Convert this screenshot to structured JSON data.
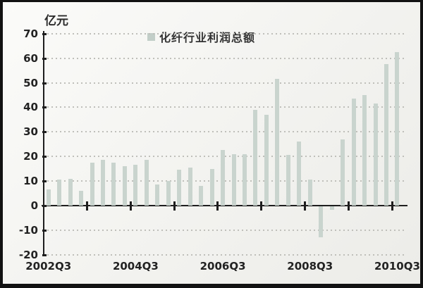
{
  "unit_label": "亿元",
  "legend": {
    "label": "化纤行业利润总额",
    "swatch_color": "#c2cec8"
  },
  "colors": {
    "bar": "#c9d4ce",
    "axis": "#1e1e1e",
    "gridline": "#bfbfba",
    "background": "#f4f4f1",
    "frame": "#121212",
    "text": "#222222"
  },
  "chart_data": {
    "type": "bar",
    "title": "化纤行业利润总额",
    "ylabel_unit": "亿元",
    "legend_entries": [
      "化纤行业利润总额"
    ],
    "legend_position": "top-center",
    "grid": "horizontal-dashed",
    "ylim": [
      -20,
      70
    ],
    "y_ticks": [
      70,
      60,
      50,
      40,
      30,
      20,
      10,
      0,
      -10,
      -20
    ],
    "x_tick_labels": [
      "2002Q3",
      "2004Q3",
      "2006Q3",
      "2008Q3",
      "2010Q3"
    ],
    "x_label_indices": [
      0,
      8,
      16,
      24,
      32
    ],
    "categories": [
      "2002Q3",
      "2002Q4",
      "2003Q1",
      "2003Q2",
      "2003Q3",
      "2003Q4",
      "2004Q1",
      "2004Q2",
      "2004Q3",
      "2004Q4",
      "2005Q1",
      "2005Q2",
      "2005Q3",
      "2005Q4",
      "2006Q1",
      "2006Q2",
      "2006Q3",
      "2006Q4",
      "2007Q1",
      "2007Q2",
      "2007Q3",
      "2007Q4",
      "2008Q1",
      "2008Q2",
      "2008Q3",
      "2008Q4",
      "2009Q1",
      "2009Q2",
      "2009Q3",
      "2009Q4",
      "2010Q1",
      "2010Q2",
      "2010Q3"
    ],
    "values": [
      6.5,
      10.5,
      11,
      6,
      17.5,
      18.5,
      17.5,
      16,
      16.5,
      18.5,
      8.5,
      10,
      14.5,
      15.5,
      8,
      15,
      22.5,
      21,
      21,
      39,
      37,
      51.5,
      20.5,
      26,
      10.5,
      -12.5,
      -1.5,
      27,
      43.5,
      45,
      41.5,
      57.5,
      62.5
    ]
  }
}
